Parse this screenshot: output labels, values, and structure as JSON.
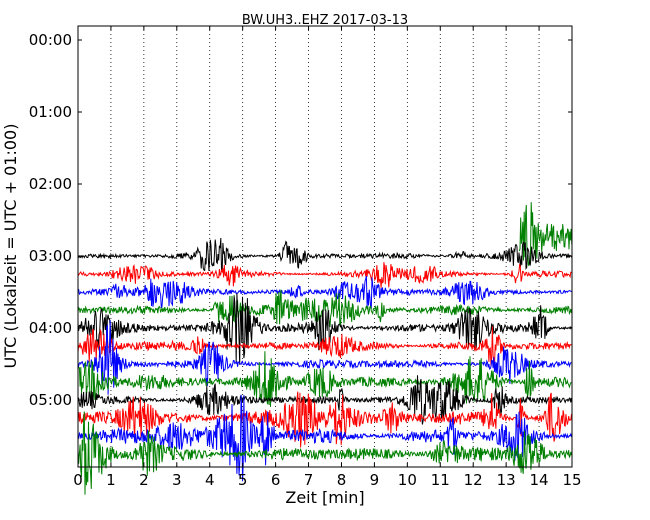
{
  "chart_data": {
    "type": "line",
    "title": "BW.UH3..EHZ 2017-03-13",
    "xlabel": "Zeit  [min]",
    "ylabel": "UTC (Lokalzeit = UTC + 01:00)",
    "xlim": [
      0,
      15
    ],
    "x_ticks": [
      "0",
      "1",
      "2",
      "3",
      "4",
      "5",
      "6",
      "7",
      "8",
      "9",
      "10",
      "11",
      "12",
      "13",
      "14",
      "15"
    ],
    "y_ticks": [
      "00:00",
      "01:00",
      "02:00",
      "03:00",
      "04:00",
      "05:00"
    ],
    "grid": "vertical dotted",
    "colors": [
      "#000000",
      "#ff0000",
      "#0000ff",
      "#008000"
    ],
    "series": [
      {
        "start": "02:45",
        "color": "#008000",
        "x_range": [
          13.4,
          15
        ],
        "amplitude": "low"
      },
      {
        "start": "03:00",
        "color": "#000000",
        "x_range": [
          0,
          15
        ],
        "amplitude": "low"
      },
      {
        "start": "03:15",
        "color": "#ff0000",
        "x_range": [
          0,
          15
        ],
        "amplitude": "low"
      },
      {
        "start": "03:30",
        "color": "#0000ff",
        "x_range": [
          0,
          15
        ],
        "amplitude": "low"
      },
      {
        "start": "03:45",
        "color": "#008000",
        "x_range": [
          0,
          15
        ],
        "amplitude": "medium"
      },
      {
        "start": "04:00",
        "color": "#000000",
        "x_range": [
          0,
          15
        ],
        "amplitude": "medium"
      },
      {
        "start": "04:15",
        "color": "#ff0000",
        "x_range": [
          0,
          15
        ],
        "amplitude": "medium"
      },
      {
        "start": "04:30",
        "color": "#0000ff",
        "x_range": [
          0,
          15
        ],
        "amplitude": "medium"
      },
      {
        "start": "04:45",
        "color": "#008000",
        "x_range": [
          0,
          15
        ],
        "amplitude": "medium"
      },
      {
        "start": "05:00",
        "color": "#000000",
        "x_range": [
          0,
          15
        ],
        "amplitude": "medium"
      },
      {
        "start": "05:15",
        "color": "#ff0000",
        "x_range": [
          0,
          15
        ],
        "amplitude": "high"
      },
      {
        "start": "05:30",
        "color": "#0000ff",
        "x_range": [
          0,
          15
        ],
        "amplitude": "high"
      },
      {
        "start": "05:45",
        "color": "#008000",
        "x_range": [
          0,
          15
        ],
        "amplitude": "high"
      }
    ]
  }
}
